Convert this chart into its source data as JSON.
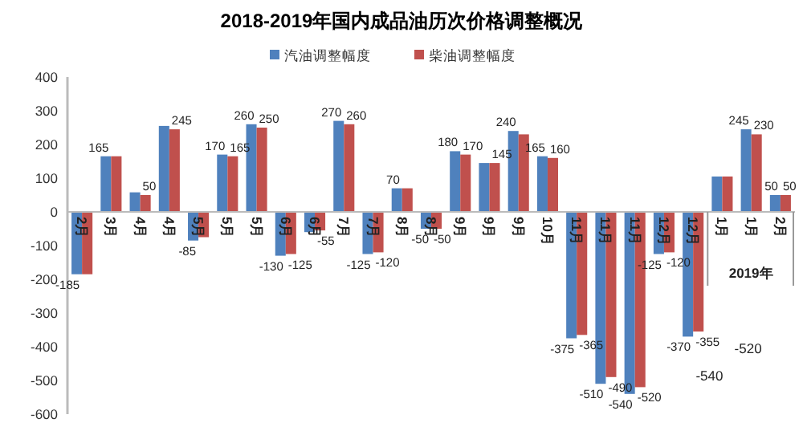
{
  "chart_data": {
    "type": "bar",
    "title": "2018-2019年国内成品油历次价格调整概况",
    "categories": [
      "2月",
      "3月",
      "4月",
      "4月",
      "5月",
      "5月",
      "5月",
      "6月",
      "6月",
      "7月",
      "7月",
      "8月",
      "8月",
      "9月",
      "9月",
      "9月",
      "10月",
      "11月",
      "11月",
      "11月",
      "12月",
      "12月",
      "1月",
      "1月",
      "2月"
    ],
    "series": [
      {
        "name": "汽油调整幅度",
        "color": "#4f81bd",
        "values": [
          -185,
          165,
          58,
          255,
          -85,
          170,
          260,
          -130,
          -60,
          270,
          -125,
          70,
          -50,
          180,
          145,
          240,
          165,
          -375,
          -510,
          -540,
          -125,
          -370,
          105,
          245,
          50
        ],
        "value_labels": [
          "-185",
          "165",
          null,
          null,
          "-85",
          "170",
          "260",
          "-130",
          null,
          "270",
          "-125",
          "70",
          "-50",
          "180",
          null,
          "240",
          "165",
          "-375",
          "-510",
          "-540",
          "-125",
          "-370",
          null,
          "245",
          "50"
        ]
      },
      {
        "name": "柴油调整幅度",
        "color": "#c0504d",
        "values": [
          -185,
          165,
          50,
          245,
          -75,
          165,
          250,
          -125,
          -55,
          260,
          -120,
          70,
          -50,
          170,
          145,
          230,
          160,
          -365,
          -490,
          -520,
          -120,
          -355,
          105,
          230,
          50
        ],
        "value_labels": [
          null,
          null,
          "50",
          "245",
          null,
          "165",
          "250",
          "-125",
          "-55",
          "260",
          "-120",
          null,
          "-50",
          "170",
          "145",
          null,
          "160",
          "-365",
          "-490",
          "-520",
          "-120",
          "-355",
          null,
          "230",
          "50"
        ]
      }
    ],
    "ylim": [
      -600,
      400
    ],
    "yticks": [
      -600,
      -500,
      -400,
      -300,
      -200,
      -100,
      0,
      100,
      200,
      300,
      400
    ],
    "legend": "top",
    "grid": false,
    "annotations": [
      "2019年",
      "-540",
      "-520"
    ]
  }
}
